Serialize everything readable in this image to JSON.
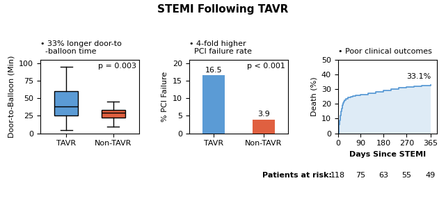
{
  "title": "STEMI Following TAVR",
  "chart_data": [
    {
      "type": "box",
      "title": "• 33% longer door-to\n  -balloon time",
      "categories": [
        "TAVR",
        "Non-TAVR"
      ],
      "boxes": [
        {
          "median": 38,
          "q1": 25,
          "q3": 60,
          "whislo": 5,
          "whishi": 95
        },
        {
          "median": 29,
          "q1": 22,
          "q3": 33,
          "whislo": 10,
          "whishi": 45
        }
      ],
      "colors": [
        "#5b9bd5",
        "#e06040"
      ],
      "ylabel": "Door-to-Balloon (Min)",
      "ylim": [
        0,
        105
      ],
      "yticks": [
        0,
        25,
        50,
        75,
        100
      ],
      "annotations": [
        "p = 0.003"
      ]
    },
    {
      "type": "bar",
      "title": "• 4-fold higher\n  PCI failure rate",
      "categories": [
        "TAVR",
        "Non-TAVR"
      ],
      "values": [
        16.5,
        3.9
      ],
      "colors": [
        "#5b9bd5",
        "#e06040"
      ],
      "ylabel": "% PCI Failure",
      "ylim": [
        0,
        21
      ],
      "yticks": [
        0,
        5,
        10,
        15,
        20
      ],
      "data_labels": true,
      "annotations": [
        "p < 0.001"
      ]
    },
    {
      "type": "step",
      "title": "• Poor clinical outcomes",
      "x": [
        0,
        3,
        5,
        8,
        10,
        13,
        15,
        18,
        20,
        23,
        25,
        30,
        40,
        50,
        60,
        70,
        80,
        90,
        120,
        150,
        180,
        210,
        240,
        270,
        300,
        330,
        365
      ],
      "values": [
        0,
        3,
        6,
        9,
        12,
        15,
        17,
        19,
        20.5,
        21.5,
        22.5,
        23.5,
        24.5,
        25,
        25.5,
        25.8,
        26,
        26.3,
        27.2,
        28,
        29,
        30,
        31,
        31.5,
        32,
        32.5,
        33.1
      ],
      "color": "#5b9bd5",
      "xlabel": "Days Since STEMI",
      "ylabel": "Death (%)",
      "xlim": [
        0,
        390
      ],
      "xticks": [
        0,
        90,
        180,
        270,
        365
      ],
      "ylim": [
        0,
        50
      ],
      "yticks": [
        0,
        10,
        20,
        30,
        40,
        50
      ],
      "annotations": [
        "33.1%"
      ],
      "patients_at_risk": {
        "label": "Patients at risk:",
        "x": [
          0,
          90,
          180,
          270,
          365
        ],
        "values": [
          118,
          75,
          63,
          55,
          49
        ]
      }
    }
  ]
}
